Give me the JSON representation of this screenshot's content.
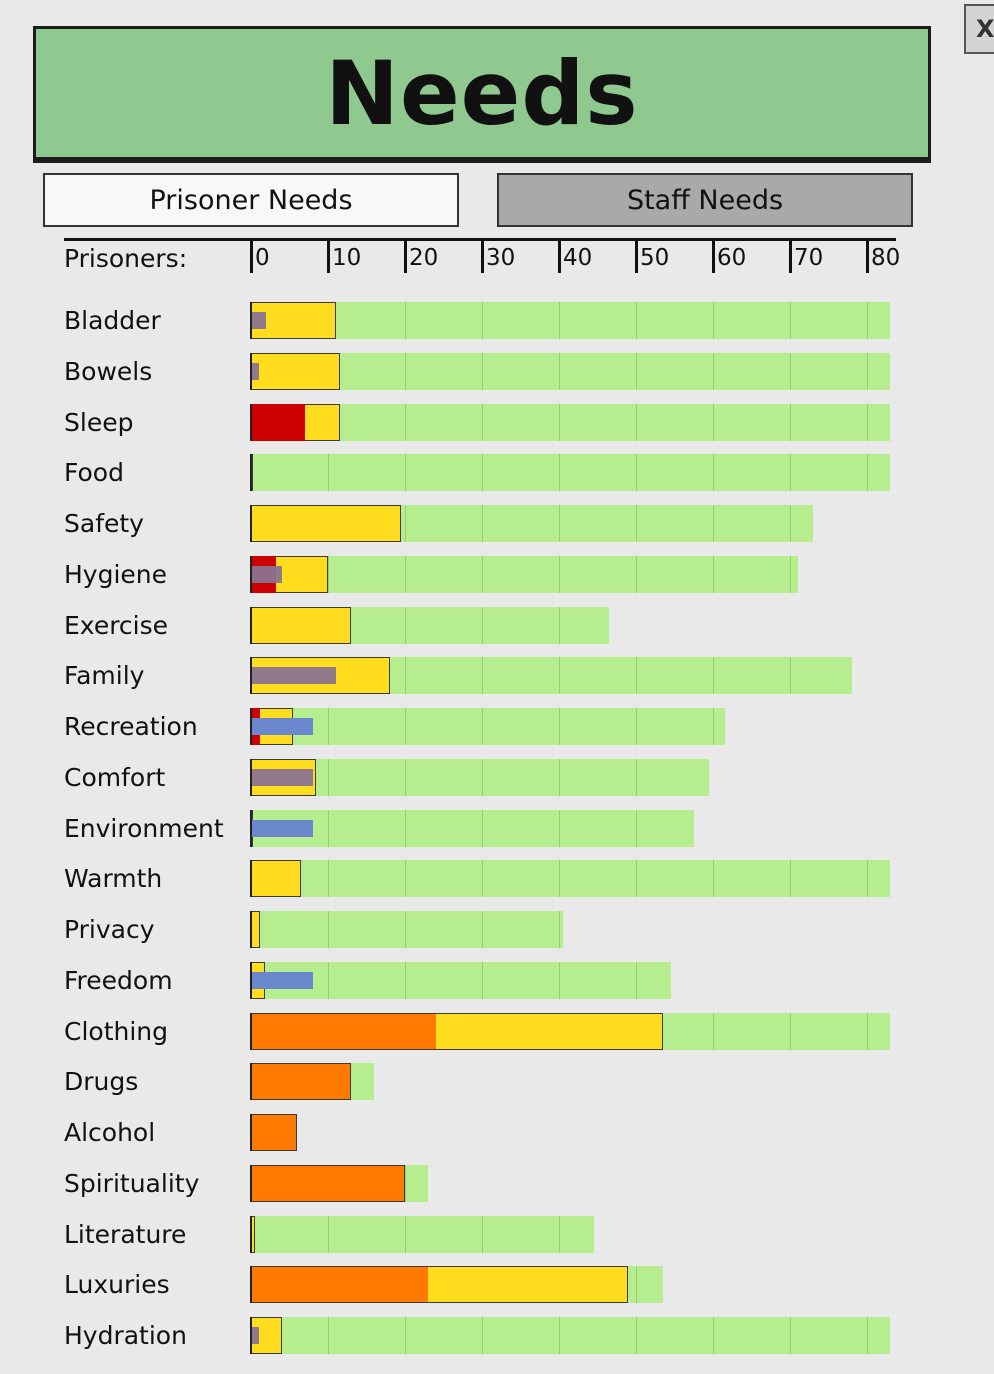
{
  "window": {
    "title": "Needs",
    "close_label": "X"
  },
  "tabs": [
    {
      "label": "Prisoner Needs",
      "active": true
    },
    {
      "label": "Staff Needs",
      "active": false
    }
  ],
  "axis": {
    "label": "Prisoners:",
    "ticks": [
      "0",
      "10",
      "20",
      "30",
      "40",
      "50",
      "60",
      "70",
      "80"
    ]
  },
  "colors": {
    "background_bar": "#b6ee8f",
    "satisfied": "#ffdc1e",
    "critical": "#cc0000",
    "warning": "#ff7a00",
    "marker_purple": "#8a7391",
    "marker_blue": "#6a86cc",
    "header_bg": "#8fc98f"
  },
  "chart_data": {
    "type": "bar",
    "x_label": "Prisoners:",
    "x_range": [
      0,
      83
    ],
    "categories": [
      "Bladder",
      "Bowels",
      "Sleep",
      "Food",
      "Safety",
      "Hygiene",
      "Exercise",
      "Family",
      "Recreation",
      "Comfort",
      "Environment",
      "Warmth",
      "Privacy",
      "Freedom",
      "Clothing",
      "Drugs",
      "Alcohol",
      "Spirituality",
      "Literature",
      "Luxuries",
      "Hydration"
    ],
    "series": [
      {
        "key": "total",
        "values": [
          83,
          83,
          83,
          83,
          73,
          71,
          46.5,
          78,
          61.5,
          59.5,
          57.5,
          83,
          40.5,
          54.5,
          83,
          16,
          6,
          23,
          44.5,
          53.5,
          83
        ]
      },
      {
        "key": "yellow",
        "values": [
          11,
          11.5,
          11.5,
          0.3,
          19.5,
          10,
          13,
          18,
          5.5,
          8.5,
          0.3,
          6.5,
          1.2,
          1.8,
          53.5,
          0,
          0,
          0,
          0.5,
          49,
          4
        ]
      },
      {
        "key": "orange",
        "values": [
          0,
          0,
          0,
          0,
          0,
          0,
          0,
          0,
          0,
          0,
          0,
          0,
          0,
          0,
          24,
          13,
          6,
          20,
          0,
          23,
          0
        ]
      },
      {
        "key": "red",
        "values": [
          0,
          0,
          7,
          0,
          0,
          3.2,
          0,
          0,
          1.2,
          0,
          0,
          0,
          0,
          0,
          0,
          0,
          0,
          0,
          0,
          0,
          0
        ]
      },
      {
        "key": "purple",
        "values": [
          2,
          1,
          0,
          0,
          0,
          4,
          0,
          11,
          0,
          8,
          0,
          0,
          0,
          0,
          0,
          0,
          0,
          0,
          0,
          0,
          1
        ]
      },
      {
        "key": "blue",
        "values": [
          0,
          0,
          0,
          0,
          0,
          0,
          0,
          0,
          8,
          0,
          8,
          0,
          0,
          8,
          0,
          0,
          0,
          0,
          0,
          0,
          0
        ]
      }
    ],
    "grid": true
  }
}
